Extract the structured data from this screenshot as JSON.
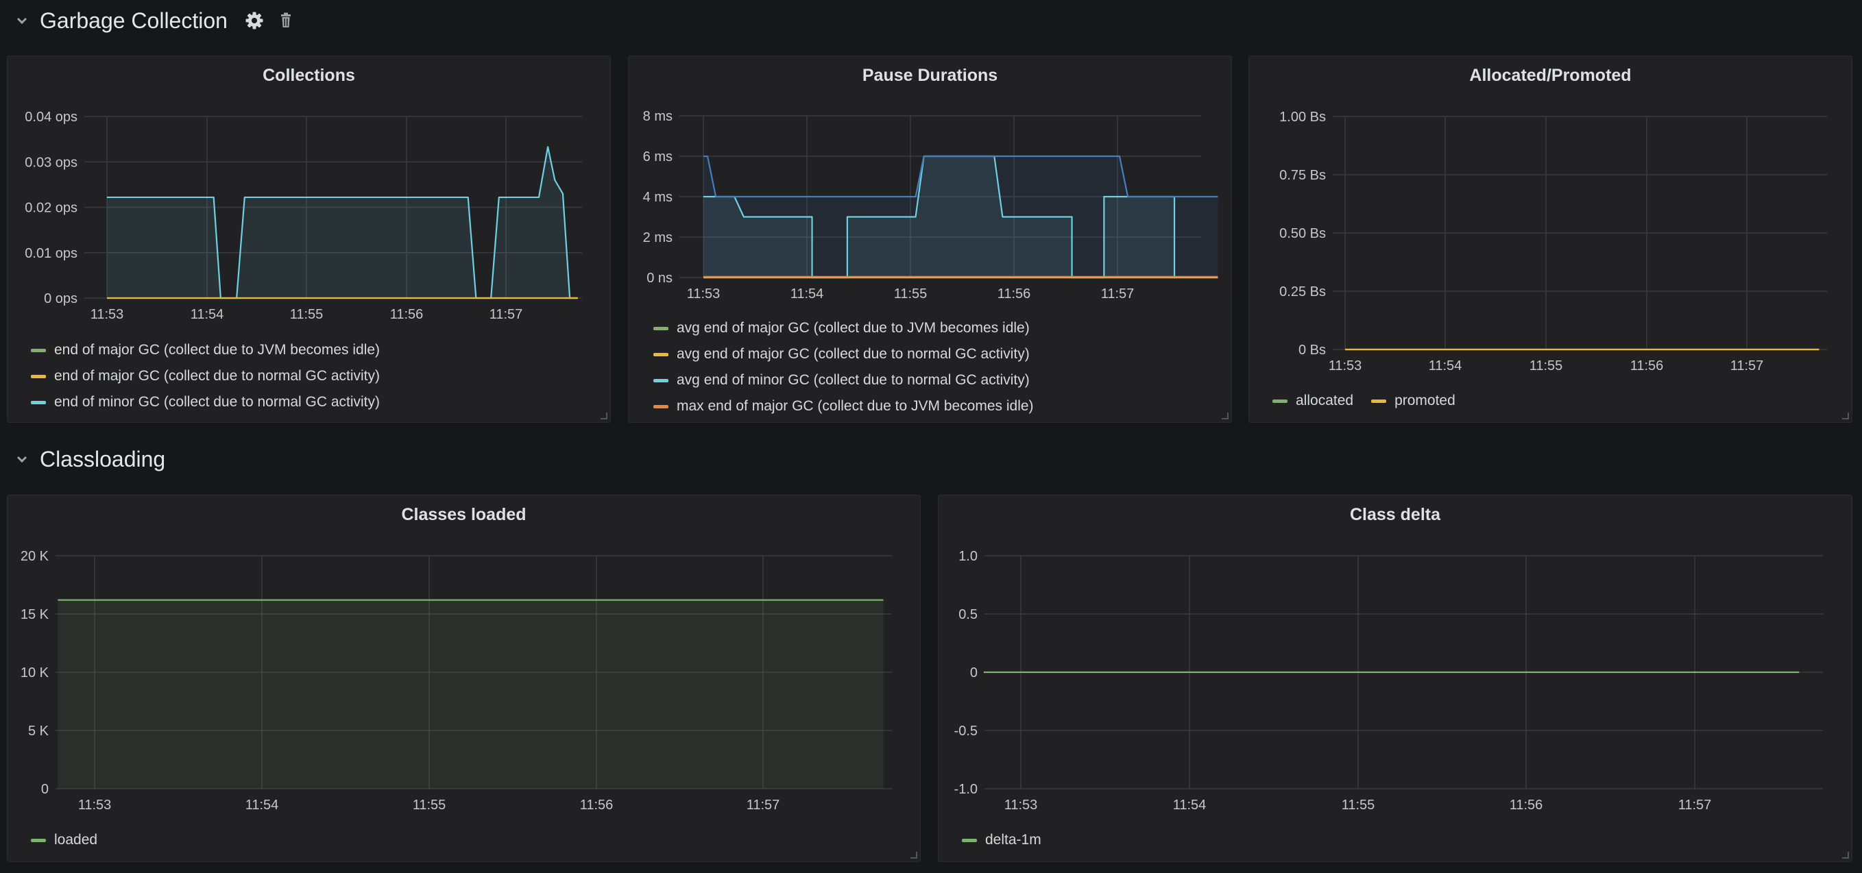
{
  "rows": [
    {
      "title": "Garbage Collection"
    },
    {
      "title": "Classloading"
    }
  ],
  "icons": {
    "collapse": "chevron-down-icon",
    "settings": "gear-icon",
    "delete": "trash-icon"
  },
  "panels": {
    "collections": {
      "title": "Collections",
      "legend": [
        {
          "label": "end of major GC (collect due to JVM becomes idle)",
          "color": "#7eb26d"
        },
        {
          "label": "end of major GC (collect due to normal GC activity)",
          "color": "#eab839"
        },
        {
          "label": "end of minor GC (collect due to normal GC activity)",
          "color": "#6ed0e0"
        }
      ]
    },
    "pause": {
      "title": "Pause Durations",
      "legend": [
        {
          "label": "avg end of major GC (collect due to JVM becomes idle)",
          "color": "#7eb26d"
        },
        {
          "label": "avg end of major GC (collect due to normal GC activity)",
          "color": "#eab839"
        },
        {
          "label": "avg end of minor GC (collect due to normal GC activity)",
          "color": "#6ed0e0"
        },
        {
          "label": "max end of major GC (collect due to JVM becomes idle)",
          "color": "#ef843c"
        }
      ]
    },
    "allocated": {
      "title": "Allocated/Promoted",
      "legend": [
        {
          "label": "allocated",
          "color": "#7eb26d"
        },
        {
          "label": "promoted",
          "color": "#eab839"
        }
      ]
    },
    "classes_loaded": {
      "title": "Classes loaded",
      "legend": [
        {
          "label": "loaded",
          "color": "#7eb26d"
        }
      ]
    },
    "class_delta": {
      "title": "Class delta",
      "legend": [
        {
          "label": "delta-1m",
          "color": "#7eb26d"
        }
      ]
    }
  },
  "chart_data": [
    {
      "id": "collections",
      "type": "line",
      "title": "Collections",
      "x_ticks": [
        "11:53",
        "11:54",
        "11:55",
        "11:56",
        "11:57"
      ],
      "y_ticks": [
        "0 ops",
        "0.01 ops",
        "0.02 ops",
        "0.03 ops",
        "0.04 ops"
      ],
      "xlim": [
        0,
        4.97
      ],
      "ylim": [
        0,
        0.04
      ],
      "series": [
        {
          "name": "end of major GC (collect due to JVM becomes idle)",
          "color": "#7eb26d",
          "points": [
            [
              0,
              0
            ],
            [
              4.72,
              0
            ]
          ]
        },
        {
          "name": "end of major GC (collect due to normal GC activity)",
          "color": "#eab839",
          "points": [
            [
              0,
              0
            ],
            [
              4.72,
              0
            ]
          ]
        },
        {
          "name": "end of minor GC (collect due to normal GC activity)",
          "color": "#6ed0e0",
          "fill": true,
          "points": [
            [
              0,
              0.0222
            ],
            [
              1.07,
              0.0222
            ],
            [
              1.14,
              0
            ],
            [
              1.3,
              0
            ],
            [
              1.38,
              0.0222
            ],
            [
              3.62,
              0.0222
            ],
            [
              3.7,
              0
            ],
            [
              3.85,
              0
            ],
            [
              3.93,
              0.0222
            ],
            [
              4.33,
              0.0222
            ],
            [
              4.42,
              0.0333
            ],
            [
              4.49,
              0.026
            ],
            [
              4.57,
              0.023
            ],
            [
              4.64,
              0
            ],
            [
              4.72,
              0
            ]
          ]
        }
      ]
    },
    {
      "id": "pause",
      "type": "line",
      "title": "Pause Durations",
      "x_ticks": [
        "11:53",
        "11:54",
        "11:55",
        "11:56",
        "11:57"
      ],
      "y_ticks": [
        "0 ns",
        "2 ms",
        "4 ms",
        "6 ms",
        "8 ms"
      ],
      "xlim": [
        0,
        4.97
      ],
      "ylim": [
        0,
        8
      ],
      "series": [
        {
          "name": "avg end of major GC (collect due to JVM becomes idle)",
          "color": "#7eb26d",
          "points": [
            [
              0,
              0
            ],
            [
              4.97,
              0
            ]
          ]
        },
        {
          "name": "avg end of major GC (collect due to normal GC activity)",
          "color": "#eab839",
          "points": [
            [
              0,
              0
            ],
            [
              4.97,
              0
            ]
          ]
        },
        {
          "name": "avg end of minor GC (collect due to normal GC activity)",
          "color": "#6ed0e0",
          "fill": true,
          "points": [
            [
              0,
              4
            ],
            [
              0.3,
              4
            ],
            [
              0.39,
              3
            ],
            [
              1.05,
              3
            ],
            [
              1.05,
              0
            ],
            [
              1.39,
              0
            ],
            [
              1.39,
              3
            ],
            [
              2.05,
              3
            ],
            [
              2.13,
              6
            ],
            [
              2.81,
              6
            ],
            [
              2.89,
              3
            ],
            [
              3.56,
              3
            ],
            [
              3.56,
              0
            ],
            [
              3.87,
              0
            ],
            [
              3.87,
              4
            ],
            [
              4.55,
              4
            ],
            [
              4.55,
              0
            ]
          ]
        },
        {
          "name": "max end of major GC (collect due to JVM becomes idle)",
          "color": "#ef843c",
          "points": [
            [
              0,
              0.04
            ],
            [
              4.97,
              0.04
            ]
          ]
        },
        {
          "name": "",
          "color": "#447ebc",
          "fill": true,
          "points": [
            [
              0,
              6
            ],
            [
              0.04,
              6
            ],
            [
              0.12,
              4
            ],
            [
              2.05,
              4
            ],
            [
              2.13,
              6
            ],
            [
              4.02,
              6
            ],
            [
              4.1,
              4
            ],
            [
              4.97,
              4
            ]
          ]
        }
      ]
    },
    {
      "id": "allocated",
      "type": "line",
      "title": "Allocated/Promoted",
      "x_ticks": [
        "11:53",
        "11:54",
        "11:55",
        "11:56",
        "11:57"
      ],
      "y_ticks": [
        "0 Bs",
        "0.25 Bs",
        "0.50 Bs",
        "0.75 Bs",
        "1.00 Bs"
      ],
      "xlim": [
        0,
        4.97
      ],
      "ylim": [
        0,
        1
      ],
      "series": [
        {
          "name": "allocated",
          "color": "#7eb26d",
          "points": [
            [
              0,
              0
            ],
            [
              4.72,
              0
            ]
          ]
        },
        {
          "name": "promoted",
          "color": "#eab839",
          "points": [
            [
              0,
              0
            ],
            [
              4.72,
              0
            ]
          ]
        }
      ]
    },
    {
      "id": "classes_loaded",
      "type": "area",
      "title": "Classes loaded",
      "x_ticks": [
        "11:53",
        "11:54",
        "11:55",
        "11:56",
        "11:57"
      ],
      "y_ticks": [
        "0",
        "5 K",
        "10 K",
        "15 K",
        "20 K"
      ],
      "xlim": [
        0,
        4.97
      ],
      "ylim": [
        0,
        20000
      ],
      "series": [
        {
          "name": "loaded",
          "color": "#7eb26d",
          "fill": true,
          "points": [
            [
              -0.22,
              16200
            ],
            [
              4.72,
              16200
            ]
          ]
        }
      ]
    },
    {
      "id": "class_delta",
      "type": "line",
      "title": "Class delta",
      "x_ticks": [
        "11:53",
        "11:54",
        "11:55",
        "11:56",
        "11:57"
      ],
      "y_ticks": [
        "-1.0",
        "-0.5",
        "0",
        "0.5",
        "1.0"
      ],
      "xlim": [
        0,
        4.97
      ],
      "ylim": [
        -1,
        1
      ],
      "series": [
        {
          "name": "delta-1m",
          "color": "#7eb26d",
          "points": [
            [
              -0.22,
              0
            ],
            [
              4.62,
              0
            ]
          ]
        }
      ]
    }
  ]
}
